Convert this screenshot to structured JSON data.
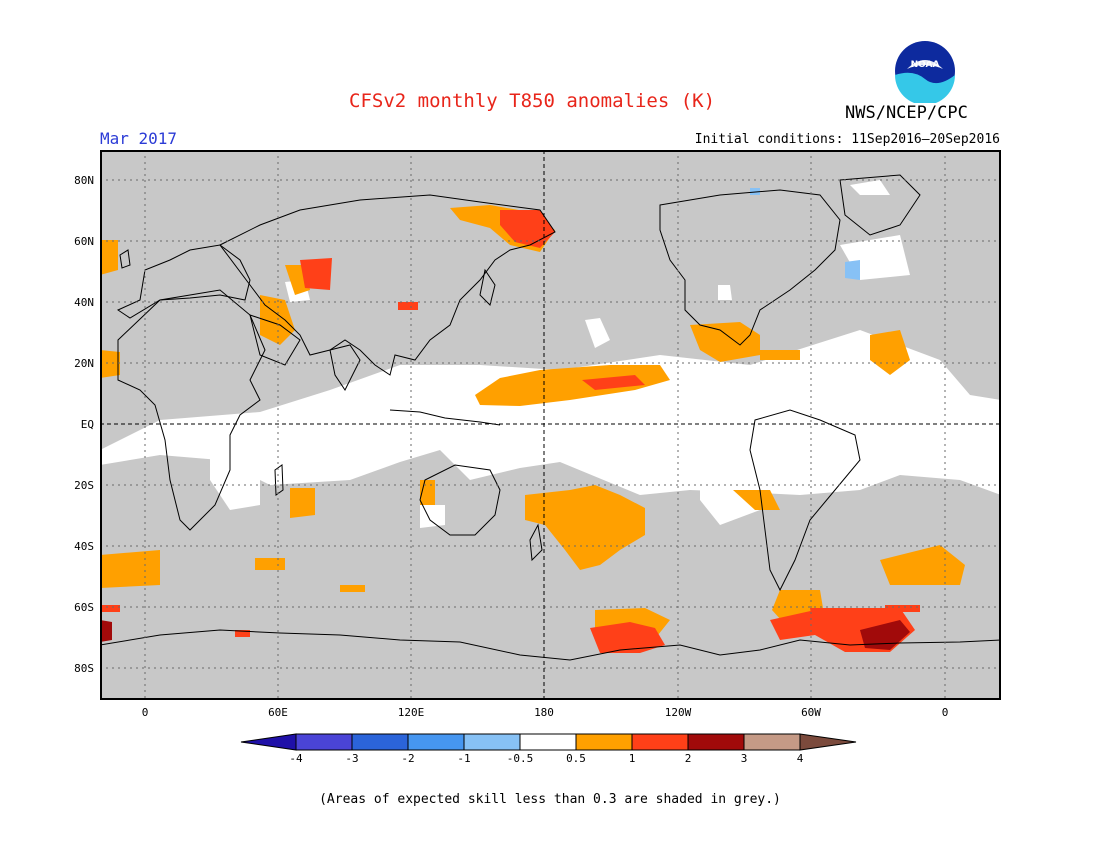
{
  "header": {
    "title": "CFSv2 monthly T850 anomalies (K)",
    "org": "NWS/NCEP/CPC",
    "logo_text": "NOAA",
    "valid_month": "Mar 2017",
    "initial_conditions": "Initial conditions: 11Sep2016–20Sep2016"
  },
  "map": {
    "lat_labels": [
      "80N",
      "60N",
      "40N",
      "20N",
      "EQ",
      "20S",
      "40S",
      "60S",
      "80S"
    ],
    "lon_labels": [
      "0",
      "60E",
      "120E",
      "180",
      "120W",
      "60W",
      "0"
    ]
  },
  "colorbar": {
    "labels": [
      "-4",
      "-3",
      "-2",
      "-1",
      "-0.5",
      "0.5",
      "1",
      "2",
      "3",
      "4"
    ],
    "colors": [
      "#1f10a8",
      "#4a44d6",
      "#2b64d9",
      "#4696f0",
      "#87c1f5",
      "#ffffff",
      "#ffa000",
      "#ff4018",
      "#a10a0a",
      "#c59a86",
      "#7b4a3c"
    ]
  },
  "colors": {
    "title": "#e8251a",
    "valid_month": "#2b3bd6",
    "low_skill_grey": "#c8c8c8"
  },
  "footnote": "(Areas of expected skill less than 0.3 are shaded in grey.)"
}
